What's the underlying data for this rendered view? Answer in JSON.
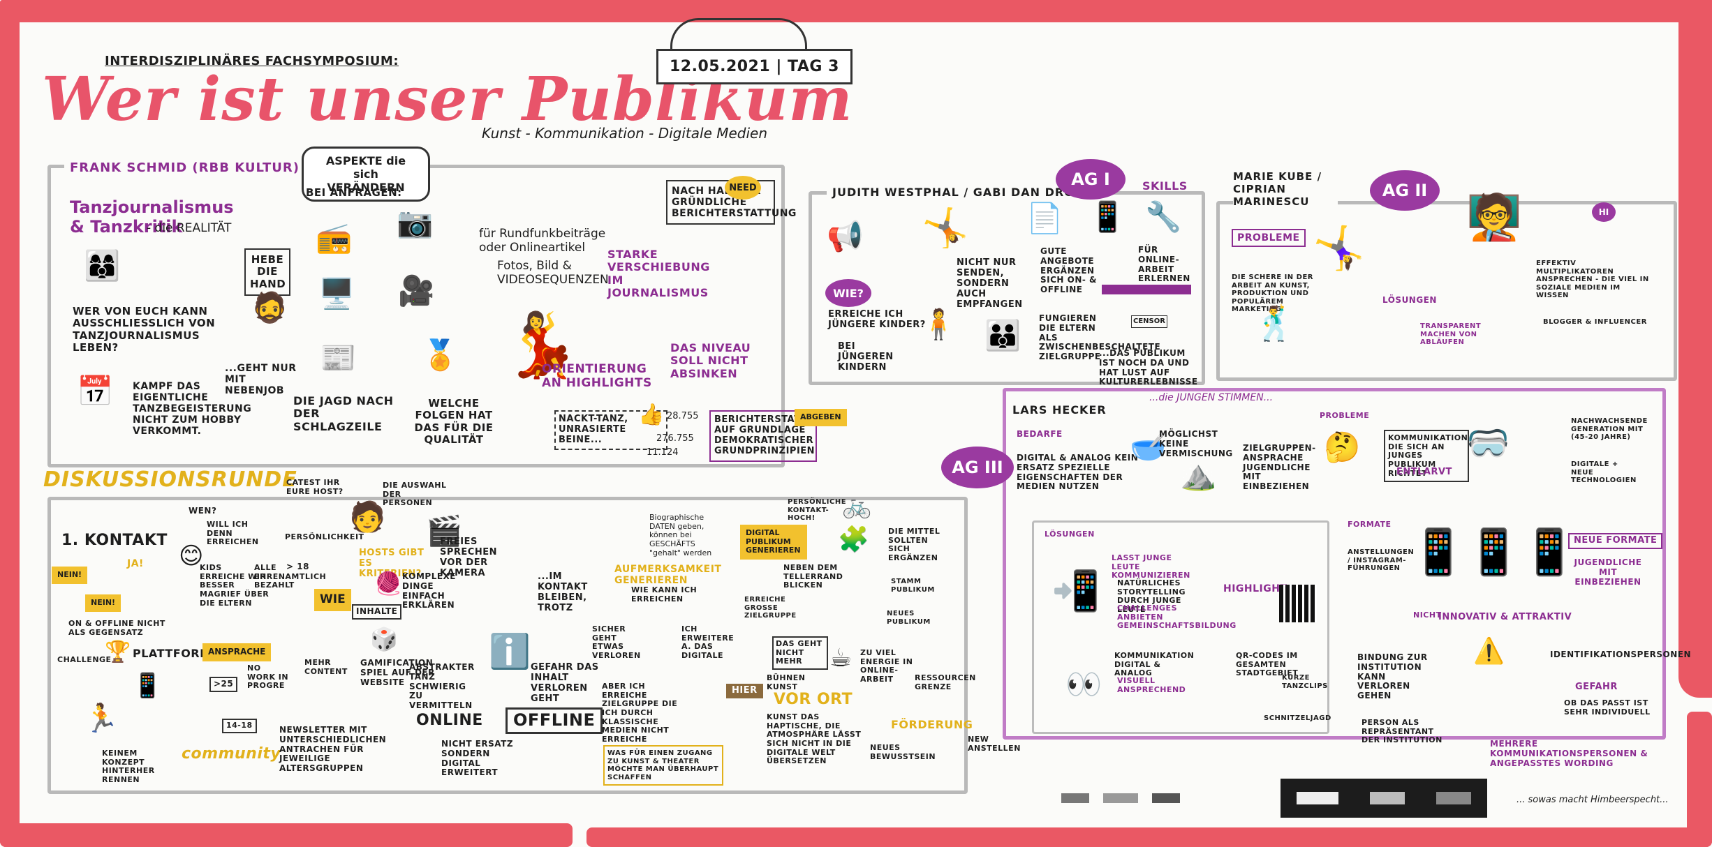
{
  "header": {
    "symposium": "INTERDISZIPLINÄRES FACHSYMPOSIUM:",
    "title": "Wer ist unser Publikum",
    "subtitle": "Kunst - Kommunikation - Digitale Medien",
    "date": "12.05.2021 | TAG 3"
  },
  "frank": {
    "name": "FRANK SCHMID (RBB KULTUR)",
    "aspects": "ASPEKTE die sich VERÄNDERN",
    "topic": "Tanzjournalismus & Tanzkritik",
    "reality": "- die REALITÄT",
    "hand": "HEBE die HAND",
    "question": "WER VON EUCH KANN AUSSCHLIEßLICH VON TANZJOURNALISMUS leben?",
    "job": "...geht nur mit NEBENJOB",
    "fight": "KAMPF das eigentliche TANZBEGEISTERUNG nicht zum HOBBY verkommt.",
    "requests": "BEI ANFRAGEN:",
    "radio": "für Rundfunkbeiträge oder Onlineartikel",
    "photos": "Fotos, Bild & VIDEOSEQUENZEN",
    "headline": "die JAGD nach der SCHLAGZEILE",
    "consequences": "WELCHE FOLGEN HAT DAS FÜR DIE QUALITÄT",
    "sustain": "NACH HALTIG & GRÜNDLICHE BERICHTERSTATTUNG",
    "need": "NEED",
    "shift": "STARKE VERSCHIEBUNG im Journalismus",
    "highlights": "ORIENTIERUNG an Highlights",
    "niveau": "DAS NIVEAU soll NICHT ABSINKEN",
    "nackt": "Nackt-Tanz, unrasierte Beine...",
    "likes1": "28.755",
    "likes2": "276.755",
    "likes3": "11.124",
    "report": "BERICHTERSTATTUNG AUF GRUNDLAGE DEMOKRATISCHER GRUNDPRINZIPIEN",
    "abgebe": "ABGEBEN"
  },
  "judith": {
    "name": "JUDITH WESTPHAL / GABI DAN DROSTE",
    "ag": "AG I",
    "skills": "SKILLS",
    "wie": "WIE?",
    "reach": "ERREICHE ICH JÜNGERE KINDER?",
    "send": "NICHT NUR SENDEN, SONDERN AUCH EMPFANGEN",
    "offers": "GUTE ANGEBOTE ERGÄNZEN SICH ON- & OFFLINE",
    "online": "FÜR ONLINE-ARBEIT ERLERNEN",
    "young": "BEI JÜNGEREN KINDERN",
    "parents": "FUNGIEREN DIE ELTERN ALS ZWISCHENBESCHALTETE ZIELGRUPPE",
    "publikum": "...das Publikum ist noch da und hat LUST auf KULTURERLEBNISSE",
    "censor": "CENSOR"
  },
  "marie": {
    "name": "MARIE KUBE / CIPRIAN MARINESCU",
    "ag": "AG II",
    "problems": "PROBLEME",
    "problems_text": "DIE SCHERE IN DER ARBEIT AN KUNST, PRODUKTION UND POPULÄREM MARKETING",
    "solutions": "LÖSUNGEN",
    "solutions_text": "TRANSPARENT MACHEN VON ABLÄUFEN",
    "hi": "HI",
    "effect": "EFFEKTIV MULTIPLIKATOREN ANSPRECHEN - DIE VIEL IN SOZIALE MEDIEN IM WISSEN",
    "blog": "BLOGGER & INFLUENCER"
  },
  "lars": {
    "name": "LARS HECKER",
    "jungen": "...die JUNGEN STIMMEN...",
    "ag": "AG III",
    "needs": "BEDARFE",
    "needs_text": "DIGITAL & ANALOG kein ERSATZ SPEZIELLE EIGENSCHAFTEN DER MEDIEN NUTZEN",
    "no_mix": "MÖGLICHST KEINE VERMISCHUNG",
    "target": "ZIELGRUPPEN-ANSPRACHE Jugendliche mit einbeziehen",
    "problems": "PROBLEME",
    "comm": "Kommunikation die sich an junges Publikum richtet",
    "entlarvt": "ENTLARVT",
    "digital": "DIGITALE + NEUE TECHNOLOGIEN",
    "gen": "NACHWACHSENDE GENERATION MIT (45-20 JAHRE)",
    "solutions": "LÖSUNGEN",
    "young_leute": "LASST JUNGE LEUTE KOMMUNIZIEREN",
    "storytelling": "NATÜRLICHES STORYTELLING DURCH JUNGE LEUTE",
    "challenges": "CHALLENGES ANBIETEN GEMEINSCHAFTSBILDUNG",
    "highlight": "HIGHLIGHT",
    "analog": "KOMMUNIKATION DIGITAL & ANALOG",
    "visual": "VISUELL ANSPRECHEND",
    "qr": "QR-CODES im gesamten Stadtgebiet",
    "tanzclips": "KURZE TANZCLIPS",
    "jagd": "SCHNITZELJAGD",
    "formats": "FORMATE",
    "new_formats": "NEUE FORMATE",
    "youth": "JUGENDLICHE MIT EINBEZIEHEN",
    "insta": "ANSTELLUNGEN / INSTAGRAM-FÜHRUNGEN",
    "innov": "INNOVATIV & ATTRAKTIV",
    "nicht": "NICHT",
    "binding": "BINDUNG zur INSTITUTION kann verloren gehen",
    "person": "PERSON ALS REPRÄSENTANT DER INSTITUTION",
    "id": "IDENTIFIKATIONSPERSONEN",
    "danger": "GEFAHR",
    "fit": "ob das passt ist sehr individuell",
    "more": "MEHRERE KOMMUNIKATIONSPERSONEN & angepasstes Wording"
  },
  "disc": {
    "title": "DISKUSSIONSRUNDE",
    "contact": "1. KONTAKT",
    "ja": "JA!",
    "nein1": "NEIN!",
    "nein2": "NEIN!",
    "wen": "WEN?",
    "will": "will ich denn erreichen",
    "kids": "Kids erreiche wir besser MAGRIEF über die ELTERN",
    "onoff": "ON & OFFLINE NICHT ALS GEGENSATZ",
    "host": "CATEST IHR EURE HOST?",
    "persona": "PERSÖNLICHKEIT",
    "hosts": "HOSTS gibt es Kriterien?",
    "selection": "die Auswahl der Personen",
    "ehren": "ALLE EHRENAMTLICH bezahlt",
    "age": "> 18",
    "speak": "FREIES SPRECHEN VOR DER KAMERA",
    "wie": "WIE",
    "inhalte": "INHALTE",
    "komplex": "Komplexe Dinge einfach erklären",
    "gamif": "GAMIFICATION Spiel auf der Website",
    "abstract": "Abstrakter Tanz schwierig zu vermitteln",
    "onl": "ONLINE",
    "offl": "OFFLINE",
    "nicht": "NICHT ERSATZ SONDERN DIGITAL ERWEITERT",
    "plattform": "PLATTFORM",
    "ansprache": "ANSPRACHE",
    "challenge": "CHALLENGE",
    "nowork": "No WORK in PROGRE",
    "more": "MEHR CONTENT",
    "age2": ">25",
    "age3": "14-18",
    "community": "community",
    "newsletter": "NEWSLETTER mit unterschiedlichen ANTRACHEN für jeweilige ALTERSGRUPPEN",
    "keine": "KEINEM KONZEPT HINTERHER RENNEN",
    "contact_keep": "...im Kontakt bleiben, trotz",
    "gefahr": "GEFAHR das INHALT verloren geht",
    "bio": "Biographische DATEN geben, können bei GESCHÄFTS \"gehalt\" werden",
    "attention": "AUFMERKSAMKEIT GENERIEREN",
    "wie_kann": "WIE KANN ICH ERREICHEN",
    "sicher": "SICHER GEHT ETWAS VERLOREN",
    "erweitere": "ICH ERWEITERE a. DAS DIGITALE",
    "ziel": "ABER ICH ERREICHE ZIELGRUPPE die ich durch klassische Medien nicht erreiche",
    "digitalpub": "DIGITAL PUBLIKUM GENERIEREN",
    "persoenlich": "PERSÖNLICHE KONTAKT-HOCH!",
    "mittel": "die MITTEL sollten sich ergänzen",
    "hier": "HIER",
    "vorort": "VOR ORT",
    "kunst": "KUNST das haptische, die ATMOSPHÄRE lässt sich nicht in die DIGITALE WELT übersetzen",
    "teile": "neben dem TELLERRAND blicken",
    "erreiche": "ERREICHE GROßE ZIELGRUPPE",
    "stamm": "STAMM PUBLIKUM",
    "neues": "NEUES PUBLIKUM",
    "das": "DAS GEHT NICHT MEHR",
    "zu": "ZU VIEL ENERGIE IN ONLINE-ARBEIT",
    "buehnen": "BÜHNEN KUNST",
    "ressourcen": "RESSOURCEN GRENZE",
    "foerderung": "FÖRDERUNG",
    "neues_bew": "NEUES BEWUSSTSEIN",
    "new_anstellen": "NEW ANSTELLEN",
    "was": "Was für einen Zugang zu Kunst & Theater möchte man überhaupt schaffen"
  },
  "footer": {
    "himbeer": "... sowas macht Himbeerspecht..."
  }
}
